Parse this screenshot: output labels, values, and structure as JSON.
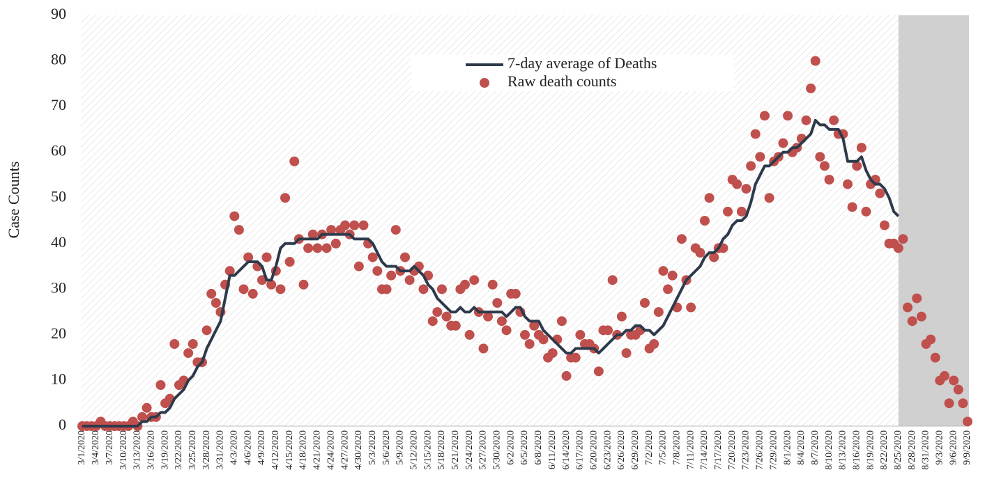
{
  "chart_data": {
    "type": "line-scatter",
    "y_label": "Case Counts",
    "categories": [
      "3/1/2020",
      null,
      null,
      "3/4/2020",
      null,
      null,
      "3/7/2020",
      null,
      null,
      "3/10/2020",
      null,
      null,
      "3/13/2020",
      null,
      null,
      "3/16/2020",
      null,
      null,
      "3/19/2020",
      null,
      null,
      "3/22/2020",
      null,
      null,
      "3/25/2020",
      null,
      null,
      "3/28/2020",
      null,
      null,
      "3/31/2020",
      null,
      null,
      "4/3/2020",
      null,
      null,
      "4/6/2020",
      null,
      null,
      "4/9/2020",
      null,
      null,
      "4/12/2020",
      null,
      null,
      "4/15/2020",
      null,
      null,
      "4/18/2020",
      null,
      null,
      "4/21/2020",
      null,
      null,
      "4/24/2020",
      null,
      null,
      "4/27/2020",
      null,
      null,
      "4/30/2020",
      null,
      null,
      "5/3/2020",
      null,
      null,
      "5/6/2020",
      null,
      null,
      "5/9/2020",
      null,
      null,
      "5/12/2020",
      null,
      null,
      "5/15/2020",
      null,
      null,
      "5/18/2020",
      null,
      null,
      "5/21/2020",
      null,
      null,
      "5/24/2020",
      null,
      null,
      "5/27/2020",
      null,
      null,
      "5/30/2020",
      null,
      null,
      "6/2/2020",
      null,
      null,
      "6/5/2020",
      null,
      null,
      "6/8/2020",
      null,
      null,
      "6/11/2020",
      null,
      null,
      "6/14/2020",
      null,
      null,
      "6/17/2020",
      null,
      null,
      "6/20/2020",
      null,
      null,
      "6/23/2020",
      null,
      null,
      "6/26/2020",
      null,
      null,
      "6/29/2020",
      null,
      null,
      "7/2/2020",
      null,
      null,
      "7/5/2020",
      null,
      null,
      "7/8/2020",
      null,
      null,
      "7/11/2020",
      null,
      null,
      "7/14/2020",
      null,
      null,
      "7/17/2020",
      null,
      null,
      "7/20/2020",
      null,
      null,
      "7/23/2020",
      null,
      null,
      "7/26/2020",
      null,
      null,
      "7/29/2020",
      null,
      null,
      "8/1/2020",
      null,
      null,
      "8/4/2020",
      null,
      null,
      "8/7/2020",
      null,
      null,
      "8/10/2020",
      null,
      null,
      "8/13/2020",
      null,
      null,
      "8/16/2020",
      null,
      null,
      "8/19/2020",
      null,
      null,
      "8/22/2020",
      null,
      null,
      "8/25/2020",
      null,
      null,
      "8/28/2020",
      null,
      null,
      "8/31/2020",
      null,
      null,
      "9/3/2020",
      null,
      null,
      "9/6/2020",
      null,
      null,
      "9/9/2020"
    ],
    "series": [
      {
        "name": "7-day average of Deaths",
        "kind": "line",
        "color": "#2e3a4b",
        "values": [
          0,
          0,
          0,
          0,
          0,
          0,
          0,
          0,
          0,
          0,
          0,
          0,
          0,
          1,
          1,
          2,
          2,
          3,
          3,
          4,
          6,
          7,
          8,
          10,
          11,
          13,
          14,
          17,
          19,
          21,
          23,
          28,
          33,
          33,
          34,
          35,
          36,
          36,
          36,
          35,
          32,
          32,
          35,
          39,
          40,
          40,
          40,
          41,
          41,
          41,
          41,
          41,
          42,
          42,
          42,
          42,
          42,
          42,
          42,
          41,
          41,
          41,
          41,
          40,
          38,
          36,
          35,
          35,
          35,
          34,
          34,
          34,
          35,
          34,
          33,
          31,
          30,
          28,
          27,
          26,
          25,
          25,
          26,
          25,
          25,
          26,
          25,
          25,
          25,
          25,
          25,
          25,
          24,
          25,
          26,
          26,
          24,
          23,
          23,
          23,
          21,
          20,
          19,
          18,
          17,
          16,
          16,
          17,
          17,
          17,
          17,
          17,
          16,
          17,
          18,
          19,
          20,
          20,
          21,
          21,
          22,
          22,
          21,
          21,
          20,
          21,
          22,
          24,
          26,
          28,
          30,
          32,
          33,
          34,
          35,
          37,
          38,
          38,
          39,
          41,
          42,
          44,
          45,
          45,
          46,
          49,
          53,
          55,
          57,
          57,
          58,
          59,
          60,
          60,
          61,
          61,
          62,
          63,
          64,
          67,
          66,
          66,
          65,
          65,
          65,
          63,
          58,
          58,
          58,
          59,
          56,
          54,
          53,
          53,
          52,
          50,
          47,
          46,
          null,
          null,
          null,
          null,
          null,
          null,
          null,
          null,
          null,
          null,
          null,
          null,
          null,
          null,
          null
        ]
      },
      {
        "name": "Raw death counts",
        "kind": "scatter",
        "color": "#c0504d",
        "values": [
          0,
          0,
          0,
          0,
          1,
          0,
          0,
          0,
          0,
          0,
          0,
          1,
          0,
          2,
          4,
          2,
          2,
          9,
          5,
          6,
          18,
          9,
          10,
          16,
          18,
          14,
          14,
          21,
          29,
          27,
          25,
          31,
          34,
          46,
          43,
          30,
          37,
          29,
          35,
          32,
          37,
          31,
          34,
          30,
          50,
          36,
          58,
          41,
          31,
          39,
          42,
          39,
          42,
          39,
          43,
          40,
          43,
          44,
          42,
          44,
          35,
          44,
          40,
          37,
          34,
          30,
          30,
          33,
          43,
          34,
          37,
          32,
          34,
          35,
          30,
          33,
          23,
          25,
          30,
          24,
          22,
          22,
          30,
          31,
          20,
          32,
          25,
          17,
          24,
          31,
          27,
          23,
          21,
          29,
          29,
          25,
          20,
          18,
          22,
          20,
          19,
          15,
          16,
          19,
          23,
          11,
          15,
          15,
          20,
          18,
          18,
          17,
          12,
          21,
          21,
          32,
          20,
          24,
          16,
          20,
          20,
          21,
          27,
          17,
          18,
          25,
          34,
          30,
          33,
          26,
          41,
          32,
          26,
          39,
          38,
          45,
          50,
          37,
          39,
          39,
          47,
          54,
          53,
          47,
          52,
          57,
          64,
          59,
          68,
          50,
          58,
          59,
          62,
          68,
          60,
          61,
          63,
          67,
          74,
          80,
          59,
          57,
          54,
          67,
          64,
          64,
          53,
          48,
          57,
          61,
          47,
          53,
          54,
          51,
          44,
          40,
          40,
          39,
          41,
          26,
          23,
          28,
          24,
          18,
          19,
          15,
          10,
          11,
          5,
          10,
          8,
          5,
          1
        ]
      }
    ],
    "shaded_range": [
      177,
      192
    ],
    "shade_color": "#c8c8c8",
    "ylim": [
      0,
      90
    ],
    "yticks": [
      0,
      10,
      20,
      30,
      40,
      50,
      60,
      70,
      80,
      90
    ],
    "grid": false,
    "legend": "top"
  }
}
